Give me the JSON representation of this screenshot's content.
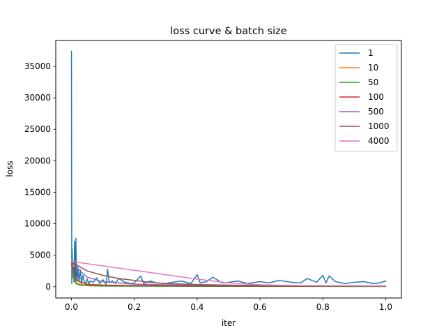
{
  "chart_data": {
    "type": "line",
    "title": "loss curve & batch size",
    "xlabel": "iter",
    "ylabel": "loss",
    "xlim": [
      -0.05,
      1.05
    ],
    "ylim": [
      -1800,
      39100
    ],
    "xticks": [
      0.0,
      0.2,
      0.4,
      0.6,
      0.8,
      1.0
    ],
    "xtick_labels": [
      "0.0",
      "0.2",
      "0.4",
      "0.6",
      "0.8",
      "1.0"
    ],
    "yticks": [
      0,
      5000,
      10000,
      15000,
      20000,
      25000,
      30000,
      35000
    ],
    "ytick_labels": [
      "0",
      "5000",
      "10000",
      "15000",
      "20000",
      "25000",
      "30000",
      "35000"
    ],
    "grid": false,
    "legend_position": "top-right",
    "series": [
      {
        "name": "1",
        "color": "#1f77b4",
        "x": [
          0.0,
          0.001,
          0.002,
          0.004,
          0.006,
          0.008,
          0.01,
          0.012,
          0.014,
          0.016,
          0.018,
          0.02,
          0.024,
          0.028,
          0.032,
          0.036,
          0.04,
          0.045,
          0.05,
          0.055,
          0.06,
          0.07,
          0.08,
          0.09,
          0.1,
          0.11,
          0.115,
          0.12,
          0.13,
          0.14,
          0.15,
          0.17,
          0.19,
          0.2,
          0.22,
          0.23,
          0.25,
          0.27,
          0.3,
          0.32,
          0.35,
          0.38,
          0.4,
          0.41,
          0.43,
          0.45,
          0.48,
          0.5,
          0.53,
          0.56,
          0.6,
          0.63,
          0.66,
          0.7,
          0.73,
          0.75,
          0.78,
          0.8,
          0.81,
          0.82,
          0.84,
          0.87,
          0.9,
          0.93,
          0.96,
          0.98,
          1.0
        ],
        "y": [
          37400,
          500,
          6000,
          1500,
          3000,
          800,
          7200,
          600,
          7700,
          900,
          1200,
          3200,
          800,
          2700,
          500,
          1800,
          1000,
          400,
          1200,
          500,
          900,
          700,
          1400,
          500,
          1100,
          400,
          2800,
          600,
          900,
          500,
          1300,
          700,
          500,
          600,
          1700,
          500,
          900,
          600,
          500,
          700,
          900,
          500,
          1900,
          600,
          800,
          1500,
          600,
          700,
          900,
          500,
          800,
          600,
          1000,
          700,
          600,
          1300,
          700,
          1800,
          600,
          1700,
          800,
          500,
          700,
          800,
          500,
          600,
          900
        ]
      },
      {
        "name": "10",
        "color": "#ff7f0e",
        "x": [
          0.0,
          0.005,
          0.01,
          0.02,
          0.04,
          0.08,
          0.15,
          0.3,
          0.5,
          0.7,
          1.0
        ],
        "y": [
          4000,
          1500,
          800,
          500,
          300,
          200,
          150,
          100,
          80,
          70,
          60
        ]
      },
      {
        "name": "50",
        "color": "#2ca02c",
        "x": [
          0.0,
          0.01,
          0.02,
          0.05,
          0.1,
          0.2,
          0.4,
          0.6,
          0.8,
          1.0
        ],
        "y": [
          3500,
          800,
          300,
          150,
          100,
          80,
          60,
          50,
          40,
          30
        ]
      },
      {
        "name": "100",
        "color": "#d62728",
        "x": [
          0.0,
          0.02,
          0.05,
          0.1,
          0.2,
          0.3,
          0.5,
          0.7,
          1.0
        ],
        "y": [
          3800,
          900,
          400,
          250,
          180,
          150,
          120,
          100,
          90
        ]
      },
      {
        "name": "500",
        "color": "#9467bd",
        "x": [
          0.0,
          0.05,
          0.1,
          0.2,
          0.3,
          0.5,
          0.7,
          0.9,
          1.0
        ],
        "y": [
          3800,
          1500,
          800,
          400,
          300,
          200,
          150,
          120,
          100
        ]
      },
      {
        "name": "1000",
        "color": "#8c564b",
        "x": [
          0.0,
          0.05,
          0.1,
          0.15,
          0.2,
          0.25,
          0.3,
          0.4,
          0.5,
          0.6,
          0.8,
          1.0
        ],
        "y": [
          3900,
          2500,
          1800,
          1300,
          1000,
          700,
          500,
          350,
          250,
          200,
          150,
          120
        ]
      },
      {
        "name": "4000",
        "color": "#e377c2",
        "x": [
          0.0,
          0.1,
          0.2,
          0.3,
          0.4,
          0.5,
          0.6,
          0.7,
          0.8,
          0.9,
          1.0
        ],
        "y": [
          4000,
          3300,
          2600,
          1900,
          1200,
          600,
          300,
          200,
          150,
          120,
          100
        ]
      }
    ]
  }
}
